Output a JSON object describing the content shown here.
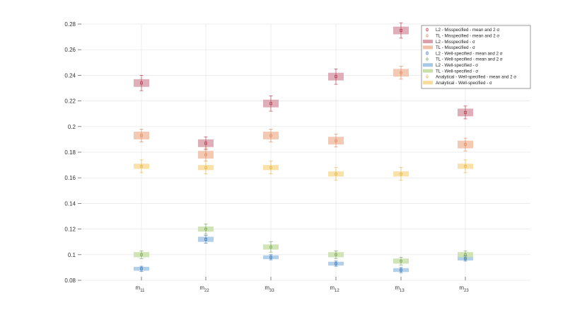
{
  "chart_data": {
    "type": "scatter",
    "categories": [
      {
        "base": "m",
        "sub": "11"
      },
      {
        "base": "m",
        "sub": "22"
      },
      {
        "base": "m",
        "sub": "33"
      },
      {
        "base": "m",
        "sub": "12"
      },
      {
        "base": "m",
        "sub": "13"
      },
      {
        "base": "m",
        "sub": "23"
      }
    ],
    "ylim": [
      0.08,
      0.28
    ],
    "yticks": [
      "0.08",
      "0.1",
      "0.12",
      "0.14",
      "0.16",
      "0.18",
      "0.2",
      "0.22",
      "0.24",
      "0.26",
      "0.28"
    ],
    "grid": true,
    "legend_placement": "top-right",
    "series": [
      {
        "name": "L2 - Misspecified - mean and 2 σ",
        "kind": "mean",
        "color": "#b03040",
        "marker": "square",
        "values": [
          0.234,
          0.187,
          0.218,
          0.239,
          0.275,
          0.211
        ],
        "err": [
          0.006,
          0.005,
          0.006,
          0.006,
          0.006,
          0.005
        ]
      },
      {
        "name": "TL - Misspecified - mean and 2 σ",
        "kind": "mean",
        "color": "#e08050",
        "marker": "circle",
        "values": [
          0.193,
          0.178,
          0.193,
          0.189,
          0.242,
          0.186
        ],
        "err": [
          0.005,
          0.005,
          0.005,
          0.005,
          0.005,
          0.005
        ]
      },
      {
        "name": "L2 - Misspecified - σ",
        "kind": "band",
        "color": "#d9a0ac",
        "values": [
          0.234,
          0.187,
          0.218,
          0.239,
          0.275,
          0.211
        ],
        "halfwidth": [
          0.003,
          0.003,
          0.003,
          0.003,
          0.003,
          0.003
        ]
      },
      {
        "name": "TL - Misspecified - σ",
        "kind": "band",
        "color": "#f2c0a6",
        "values": [
          0.193,
          0.178,
          0.193,
          0.189,
          0.242,
          0.186
        ],
        "halfwidth": [
          0.003,
          0.003,
          0.003,
          0.003,
          0.003,
          0.003
        ]
      },
      {
        "name": "L2 - Well-specified - mean and 2 σ",
        "kind": "mean",
        "color": "#3070b0",
        "marker": "square",
        "values": [
          0.089,
          0.112,
          0.098,
          0.093,
          0.088,
          0.097
        ],
        "err": [
          0.002,
          0.003,
          0.002,
          0.002,
          0.002,
          0.002
        ]
      },
      {
        "name": "TL - Well-specified - mean and 2 σ",
        "kind": "mean",
        "color": "#70a050",
        "marker": "circle",
        "values": [
          0.1,
          0.12,
          0.106,
          0.1,
          0.095,
          0.1
        ],
        "err": [
          0.003,
          0.004,
          0.004,
          0.003,
          0.003,
          0.003
        ]
      },
      {
        "name": "L2 - Well-specified - σ",
        "kind": "band",
        "color": "#a6c8e6",
        "values": [
          0.089,
          0.112,
          0.098,
          0.093,
          0.088,
          0.097
        ],
        "halfwidth": [
          0.0015,
          0.002,
          0.0015,
          0.0015,
          0.0015,
          0.0015
        ]
      },
      {
        "name": "TL - Well-specified - σ",
        "kind": "band",
        "color": "#c8dfa8",
        "values": [
          0.1,
          0.12,
          0.106,
          0.1,
          0.095,
          0.1
        ],
        "halfwidth": [
          0.002,
          0.002,
          0.002,
          0.002,
          0.002,
          0.002
        ]
      },
      {
        "name": "Analytical - Well-specified - mean and 2 σ",
        "kind": "mean",
        "color": "#e8b040",
        "marker": "circle",
        "values": [
          0.169,
          0.168,
          0.168,
          0.163,
          0.163,
          0.169
        ],
        "err": [
          0.005,
          0.005,
          0.005,
          0.005,
          0.005,
          0.005
        ]
      },
      {
        "name": "Analytical - Well-specified - σ",
        "kind": "band",
        "color": "#f8dc98",
        "values": [
          0.169,
          0.168,
          0.168,
          0.163,
          0.163,
          0.169
        ],
        "halfwidth": [
          0.002,
          0.002,
          0.002,
          0.002,
          0.002,
          0.002
        ]
      }
    ]
  }
}
